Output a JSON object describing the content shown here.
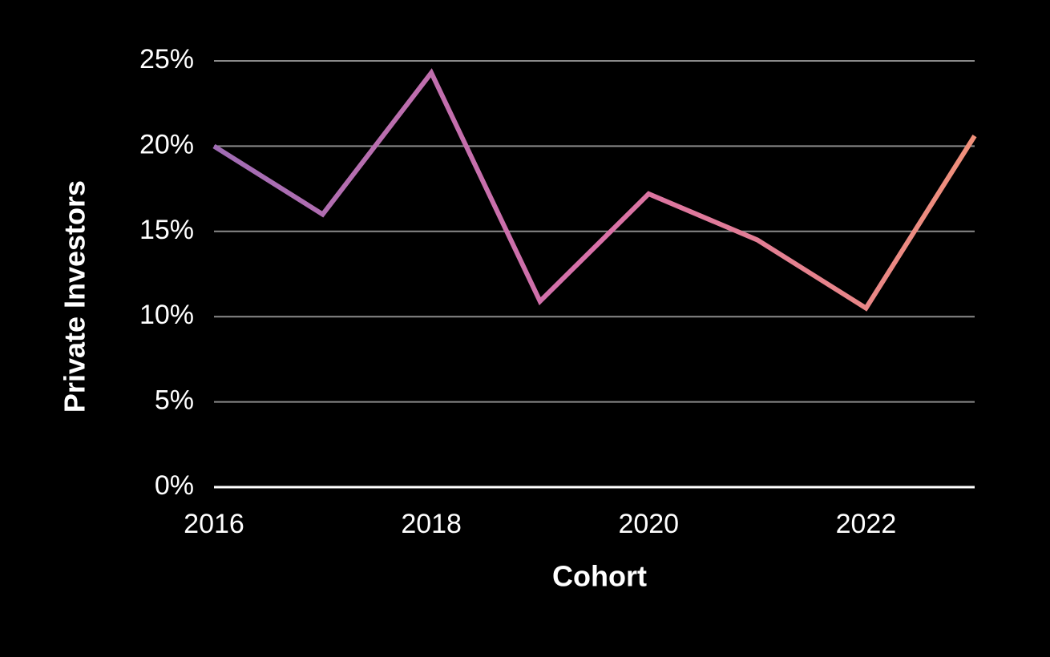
{
  "chart_data": {
    "type": "line",
    "x": [
      2016,
      2017,
      2018,
      2019,
      2020,
      2021,
      2022,
      2023
    ],
    "series": [
      {
        "values": [
          20,
          16,
          24.3,
          10.9,
          17.2,
          14.5,
          10.5,
          20.6
        ],
        "colors": [
          "#a06cb4",
          "#d870a8",
          "#f0907a"
        ]
      }
    ],
    "xlim": [
      2016,
      2023
    ],
    "xticks": [
      2016,
      2018,
      2020,
      2022
    ],
    "ylim": [
      0,
      25
    ],
    "yticks": [
      {
        "value": 0,
        "label": "0%"
      },
      {
        "value": 5,
        "label": "5%"
      },
      {
        "value": 10,
        "label": "10%"
      },
      {
        "value": 15,
        "label": "15%"
      },
      {
        "value": 20,
        "label": "20%"
      },
      {
        "value": 25,
        "label": "25%"
      }
    ],
    "xlabel": "Cohort",
    "ylabel": "Private Investors",
    "grid": true
  }
}
